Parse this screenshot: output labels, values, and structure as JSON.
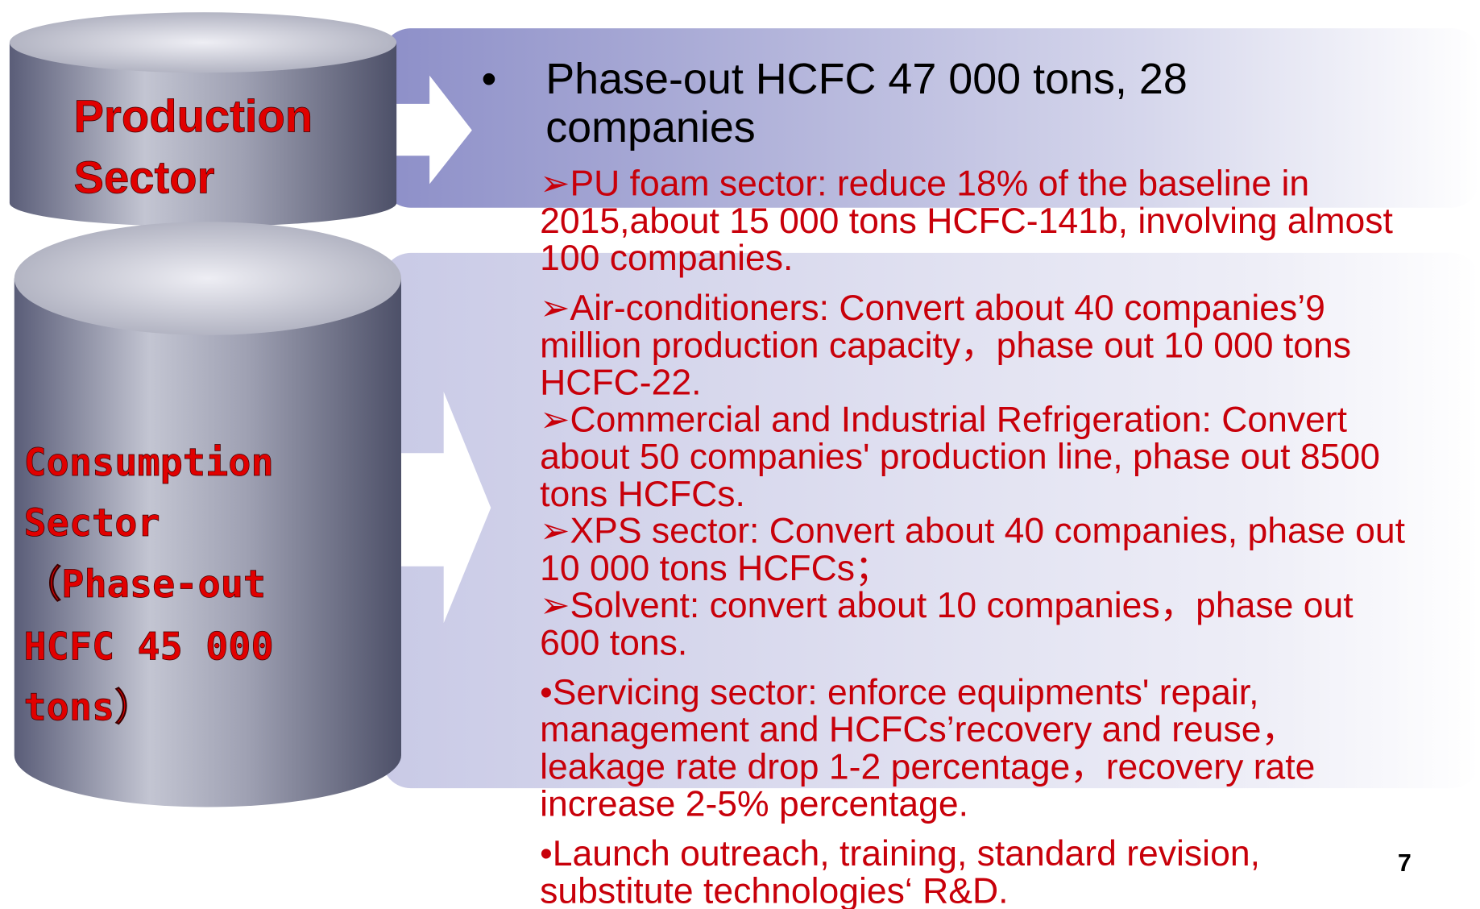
{
  "production_sector": {
    "lines": [
      "Production",
      "Sector"
    ]
  },
  "consumption_sector": {
    "lines": [
      "Consumption",
      "Sector",
      "（Phase-out",
      "HCFC 45 000",
      "tons）"
    ]
  },
  "headline": {
    "bullet": "•",
    "lines": [
      "Phase-out HCFC 47 000 tons, 28",
      "companies"
    ]
  },
  "items": [
    {
      "lines": [
        "➢PU foam sector: reduce 18% of the baseline in",
        "2015,about 15 000 tons HCFC-141b, involving almost",
        "100 companies."
      ]
    },
    {
      "lines": [
        "➢Air-conditioners: Convert about 40 companies’9",
        "million production capacity，phase out 10 000 tons",
        "HCFC-22."
      ]
    },
    {
      "lines": [
        "➢Commercial and Industrial Refrigeration: Convert",
        "about 50 companies' production line, phase out 8500",
        "tons HCFCs."
      ]
    },
    {
      "lines": [
        "➢XPS sector: Convert about 40 companies, phase out",
        "10 000 tons HCFCs；"
      ]
    },
    {
      "lines": [
        "➢Solvent: convert about 10 companies，phase out",
        "600 tons."
      ]
    },
    {
      "lines": [
        "•Servicing sector: enforce equipments' repair,",
        "management and HCFCs’recovery and reuse，",
        "leakage rate drop 1-2 percentage，recovery rate",
        "increase 2-5% percentage."
      ]
    },
    {
      "lines": [
        "•Launch outreach, training, standard revision,",
        "substitute technologies‘ R&D."
      ]
    }
  ],
  "page_number": "7"
}
